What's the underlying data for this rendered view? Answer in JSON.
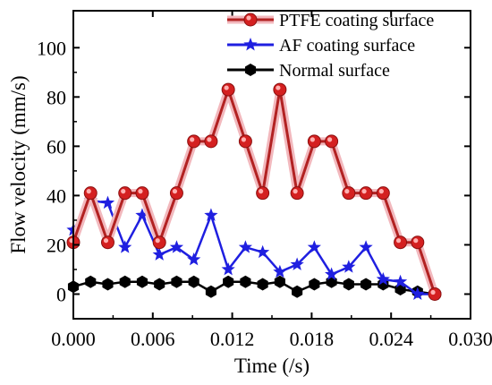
{
  "chart_data": {
    "type": "line",
    "xlabel": "Time  (/s)",
    "ylabel": "Flow velocity (mm/s)",
    "xlim": [
      0.0,
      0.03
    ],
    "ylim": [
      -10,
      115
    ],
    "x_ticks": [
      "0.000",
      "0.006",
      "0.012",
      "0.018",
      "0.024",
      "0.030"
    ],
    "x_tick_values": [
      0.0,
      0.006,
      0.012,
      0.018,
      0.024,
      0.03
    ],
    "y_ticks": [
      "0",
      "20",
      "40",
      "60",
      "80",
      "100"
    ],
    "y_tick_values": [
      0,
      20,
      40,
      60,
      80,
      100
    ],
    "grid": false,
    "legend_position": "top-right",
    "series": [
      {
        "name": "PTFE coating surface",
        "color": "#b22222",
        "marker": "circle",
        "x": [
          0.0,
          0.0013,
          0.0026,
          0.0039,
          0.0052,
          0.0065,
          0.0078,
          0.0091,
          0.0104,
          0.0117,
          0.013,
          0.0143,
          0.0156,
          0.0169,
          0.0182,
          0.0195,
          0.0208,
          0.0221,
          0.0234,
          0.0247,
          0.026,
          0.0273
        ],
        "y": [
          21,
          41,
          21,
          41,
          41,
          21,
          41,
          62,
          62,
          83,
          62,
          41,
          83,
          41,
          62,
          62,
          41,
          41,
          41,
          21,
          21,
          0
        ]
      },
      {
        "name": "AF coating surface",
        "color": "#1f1fe0",
        "marker": "star",
        "x": [
          0.0,
          0.0013,
          0.0026,
          0.0039,
          0.0052,
          0.0065,
          0.0078,
          0.0091,
          0.0104,
          0.0117,
          0.013,
          0.0143,
          0.0156,
          0.0169,
          0.0182,
          0.0195,
          0.0208,
          0.0221,
          0.0234,
          0.0247,
          0.026,
          0.0273
        ],
        "y": [
          26,
          38,
          37,
          19,
          32,
          16,
          19,
          14,
          32,
          10,
          19,
          17,
          9,
          12,
          19,
          8,
          11,
          19,
          6,
          5,
          0,
          0
        ]
      },
      {
        "name": "Normal surface",
        "color": "#000000",
        "marker": "hexagon",
        "x": [
          0.0,
          0.0013,
          0.0026,
          0.0039,
          0.0052,
          0.0065,
          0.0078,
          0.0091,
          0.0104,
          0.0117,
          0.013,
          0.0143,
          0.0156,
          0.0169,
          0.0182,
          0.0195,
          0.0208,
          0.0221,
          0.0234,
          0.0247,
          0.026,
          0.0273
        ],
        "y": [
          3,
          5,
          4,
          5,
          5,
          4,
          5,
          5,
          1,
          5,
          5,
          4,
          5,
          1,
          4,
          5,
          4,
          4,
          4,
          2,
          1,
          0
        ]
      }
    ]
  }
}
